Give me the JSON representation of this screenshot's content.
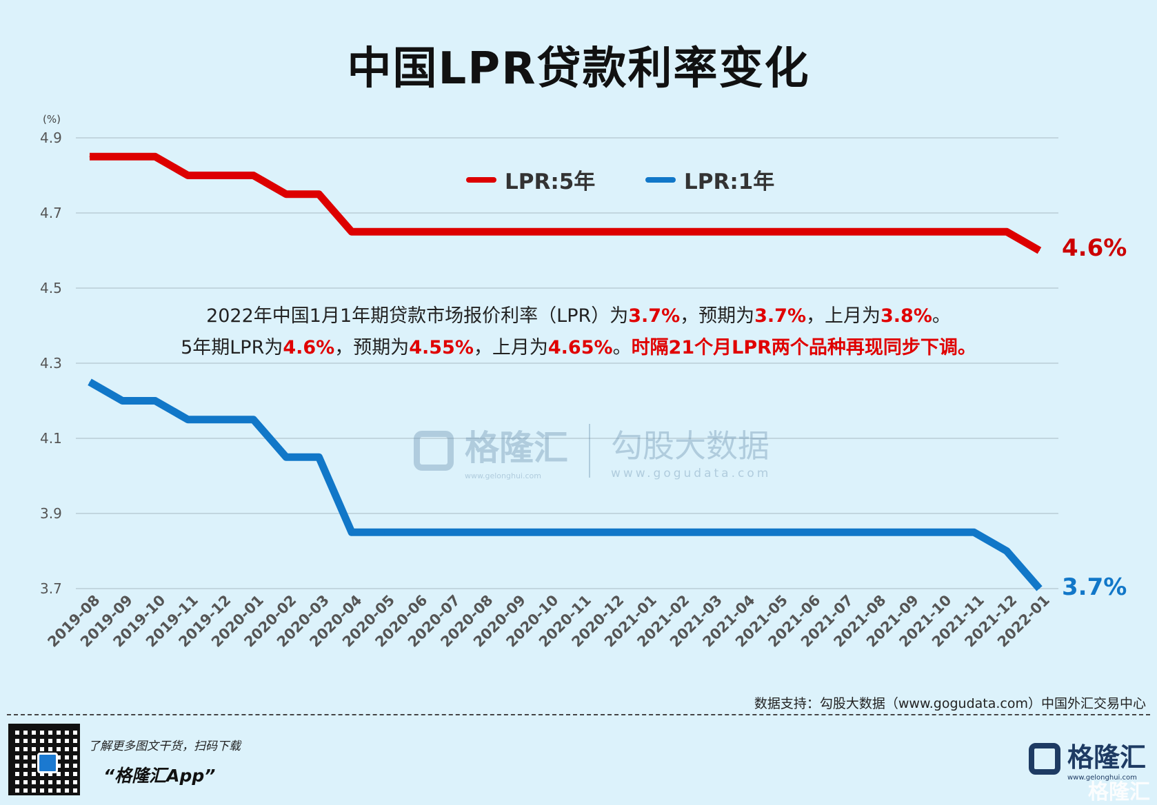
{
  "title": "中国LPR贷款利率变化",
  "chart_data": {
    "type": "line",
    "title": "中国LPR贷款利率变化",
    "ylabel": "(%)",
    "ylim": [
      3.7,
      4.9
    ],
    "yticks": [
      3.7,
      3.9,
      4.1,
      4.3,
      4.5,
      4.7,
      4.9
    ],
    "ytick_labels": [
      "3.7",
      "3.9",
      "4.1",
      "4.3",
      "4.5",
      "4.7",
      "4.9"
    ],
    "grid": true,
    "legend_position": "top-center",
    "categories": [
      "2019-08",
      "2019-09",
      "2019-10",
      "2019-11",
      "2019-12",
      "2020-01",
      "2020-02",
      "2020-03",
      "2020-04",
      "2020-05",
      "2020-06",
      "2020-07",
      "2020-08",
      "2020-09",
      "2020-10",
      "2020-11",
      "2020-12",
      "2021-01",
      "2021-02",
      "2021-03",
      "2021-04",
      "2021-05",
      "2021-06",
      "2021-07",
      "2021-08",
      "2021-09",
      "2021-10",
      "2021-11",
      "2021-12",
      "2022-01"
    ],
    "series": [
      {
        "name": "LPR:5年",
        "color": "#dd0000",
        "values": [
          4.85,
          4.85,
          4.85,
          4.8,
          4.8,
          4.8,
          4.75,
          4.75,
          4.65,
          4.65,
          4.65,
          4.65,
          4.65,
          4.65,
          4.65,
          4.65,
          4.65,
          4.65,
          4.65,
          4.65,
          4.65,
          4.65,
          4.65,
          4.65,
          4.65,
          4.65,
          4.65,
          4.65,
          4.65,
          4.6
        ],
        "end_label": "4.6%"
      },
      {
        "name": "LPR:1年",
        "color": "#1177c8",
        "values": [
          4.25,
          4.2,
          4.2,
          4.15,
          4.15,
          4.15,
          4.05,
          4.05,
          3.85,
          3.85,
          3.85,
          3.85,
          3.85,
          3.85,
          3.85,
          3.85,
          3.85,
          3.85,
          3.85,
          3.85,
          3.85,
          3.85,
          3.85,
          3.85,
          3.85,
          3.85,
          3.85,
          3.85,
          3.8,
          3.7
        ],
        "end_label": "3.7%"
      }
    ]
  },
  "annotation": {
    "line1": [
      {
        "t": "2022年中国1月1年期贷款市场报价利率（LPR）为",
        "hl": false
      },
      {
        "t": "3.7%",
        "hl": true
      },
      {
        "t": "，预期为",
        "hl": false
      },
      {
        "t": "3.7%",
        "hl": true
      },
      {
        "t": "，上月为",
        "hl": false
      },
      {
        "t": "3.8%",
        "hl": true
      },
      {
        "t": "。",
        "hl": false
      }
    ],
    "line2": [
      {
        "t": "5年期LPR为",
        "hl": false
      },
      {
        "t": "4.6%",
        "hl": true
      },
      {
        "t": "，预期为",
        "hl": false
      },
      {
        "t": "4.55%",
        "hl": true
      },
      {
        "t": "，上月为",
        "hl": false
      },
      {
        "t": "4.65%",
        "hl": true
      },
      {
        "t": "。",
        "hl": false
      },
      {
        "t": "时隔21个月LPR两个品种再现同步下调。",
        "hl": true
      }
    ]
  },
  "watermark": {
    "brand": "格隆汇",
    "brand_url": "www.gelonghui.com",
    "partner": "勾股大数据",
    "partner_url": "www.gogudata.com"
  },
  "source": "数据支持：勾股大数据（www.gogudata.com）中国外汇交易中心",
  "footer": {
    "promo_line1": "了解更多图文干货，扫码下载",
    "promo_line2": "“格隆汇App”",
    "logo_name": "格隆汇",
    "logo_url": "www.gelonghui.com",
    "logo_watermark": "格隆汇"
  }
}
